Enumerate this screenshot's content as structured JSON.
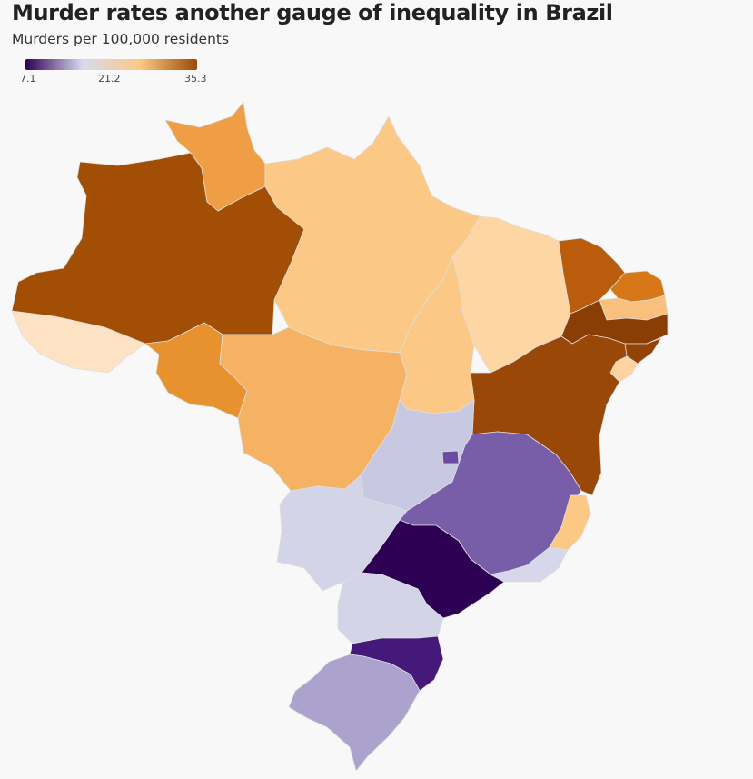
{
  "header": {
    "title": "Murder rates another gauge of inequality in Brazil",
    "subtitle": "Murders per 100,000 residents"
  },
  "legend": {
    "min_label": "7.1",
    "mid_label": "21.2",
    "max_label": "35.3",
    "colors": [
      "#2d0054",
      "#d9d9ee",
      "#fbc985",
      "#9e4a04"
    ]
  },
  "map": {
    "country": "Brazil",
    "regions": [
      {
        "key": "amazonas",
        "fill": "#a24e05"
      },
      {
        "key": "acre",
        "fill": "#fde2c4"
      },
      {
        "key": "roraima",
        "fill": "#f09e45"
      },
      {
        "key": "para_amapa",
        "fill": "#fbc985"
      },
      {
        "key": "rondonia",
        "fill": "#e8912f"
      },
      {
        "key": "mato_grosso",
        "fill": "#f5b263"
      },
      {
        "key": "tocantins",
        "fill": "#fbc985"
      },
      {
        "key": "maranhao_piaui",
        "fill": "#fdd6a3"
      },
      {
        "key": "ceara",
        "fill": "#b95c0b"
      },
      {
        "key": "rio_grande_do_norte",
        "fill": "#d87718"
      },
      {
        "key": "paraiba",
        "fill": "#f8c07c"
      },
      {
        "key": "pernambuco",
        "fill": "#8a3e06"
      },
      {
        "key": "alagoas",
        "fill": "#924306"
      },
      {
        "key": "sergipe",
        "fill": "#fcd3a1"
      },
      {
        "key": "bahia",
        "fill": "#994808"
      },
      {
        "key": "goias",
        "fill": "#c9c8e3"
      },
      {
        "key": "distrito_federal",
        "fill": "#6a4ba1"
      },
      {
        "key": "minas_gerais",
        "fill": "#785ea8"
      },
      {
        "key": "espirito_santo",
        "fill": "#fbc985"
      },
      {
        "key": "mato_grosso_do_sul",
        "fill": "#d4d4e8"
      },
      {
        "key": "sao_paulo",
        "fill": "#2d0054"
      },
      {
        "key": "rio_de_janeiro",
        "fill": "#d7d7eb"
      },
      {
        "key": "parana",
        "fill": "#d4d4e8"
      },
      {
        "key": "santa_catarina",
        "fill": "#45197a"
      },
      {
        "key": "rio_grande_do_sul",
        "fill": "#aba3cd"
      }
    ]
  }
}
